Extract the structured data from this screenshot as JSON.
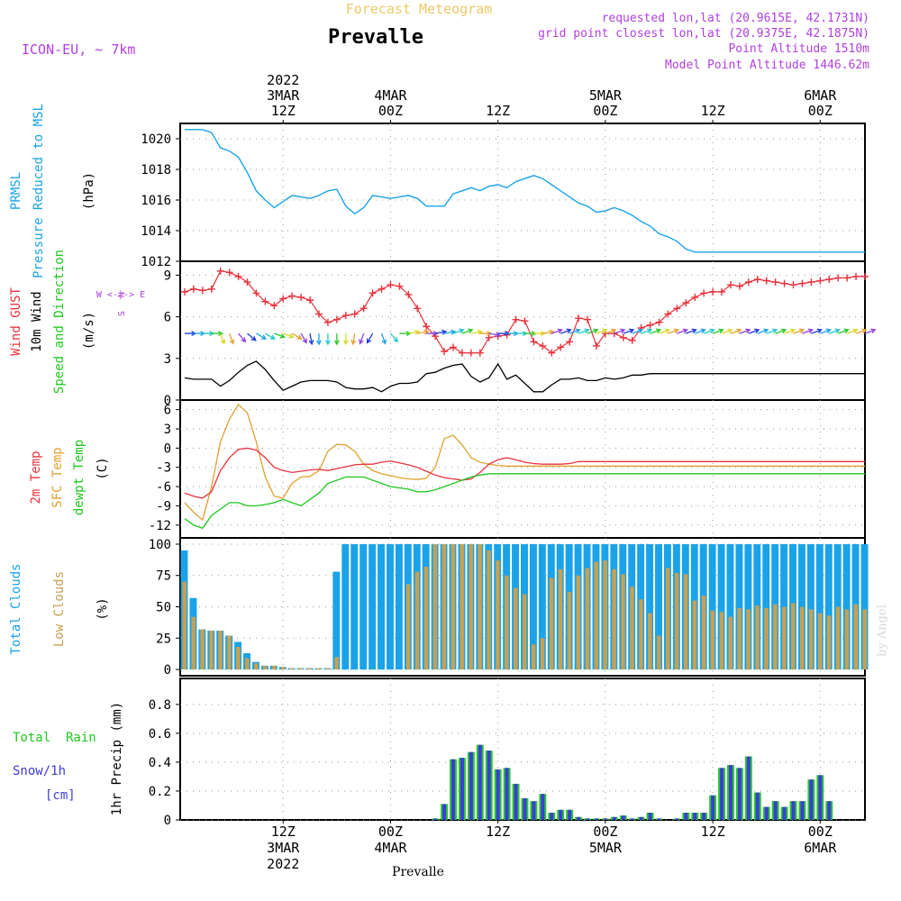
{
  "header": {
    "subtitle": "Forecast Meteogram",
    "location": "Prevalle",
    "model": "ICON-EU, ~ 7km",
    "requested": "requested lon,lat (20.9615E, 42.1731N)",
    "gridpoint": "grid point closest lon,lat (20.9375E, 42.1875N)",
    "altitude": "Point Altitude 1510m",
    "model_altitude": "Model Point Altitude 1446.62m",
    "footer": "Prevalle",
    "credit": "by Angel"
  },
  "time_axis": {
    "top_labels": [
      {
        "hour": 12,
        "lines": [
          "2022",
          "3MAR",
          "12Z"
        ]
      },
      {
        "hour": 24,
        "lines": [
          "4MAR",
          "00Z"
        ]
      },
      {
        "hour": 36,
        "lines": [
          "12Z"
        ]
      },
      {
        "hour": 48,
        "lines": [
          "5MAR",
          "00Z"
        ]
      },
      {
        "hour": 60,
        "lines": [
          "12Z"
        ]
      },
      {
        "hour": 72,
        "lines": [
          "6MAR",
          "00Z"
        ]
      }
    ],
    "bottom_labels": [
      {
        "hour": 12,
        "lines": [
          "12Z",
          "3MAR",
          "2022"
        ]
      },
      {
        "hour": 24,
        "lines": [
          "00Z",
          "4MAR"
        ]
      },
      {
        "hour": 36,
        "lines": [
          "12Z"
        ]
      },
      {
        "hour": 48,
        "lines": [
          "00Z",
          "5MAR"
        ]
      },
      {
        "hour": 60,
        "lines": [
          "12Z"
        ]
      },
      {
        "hour": 72,
        "lines": [
          "00Z",
          "6MAR"
        ]
      }
    ],
    "range_hours": [
      0.5,
      77
    ]
  },
  "colors": {
    "pressure": "#1aa3e8",
    "gust": "#e8323c",
    "wind": "#000000",
    "dewpt": "#1ec81e",
    "sfc": "#e0a030",
    "total_clouds": "#1aa3e8",
    "low_clouds": "#c8a050",
    "rain": "#28c828",
    "snow": "#3c3cdc",
    "purple": "#b040e0",
    "green_text": "#1ec81e"
  },
  "panels": {
    "pressure": {
      "labels": [
        "PRMSL",
        "Pressure Reduced to MSL"
      ],
      "unit": "(hPa)",
      "yticks": [
        1012,
        1014,
        1016,
        1018,
        1020
      ]
    },
    "wind": {
      "labels": [
        "Wind GUST",
        "10m Wind",
        "Speed and Direction"
      ],
      "unit": "(m/s)",
      "yticks": [
        0,
        3,
        6,
        9
      ],
      "compass": [
        "N",
        "W <-|-> E",
        "S"
      ]
    },
    "temp": {
      "labels": [
        "2m Temp",
        "SFC Temp",
        "dewpt Temp"
      ],
      "unit": "(C)",
      "yticks": [
        -12,
        -9,
        -6,
        -3,
        0,
        3,
        6
      ]
    },
    "clouds": {
      "labels": [
        "Total Clouds",
        "Low Clouds"
      ],
      "unit": "(%)",
      "yticks": [
        0,
        25,
        50,
        75,
        100
      ]
    },
    "precip": {
      "labels": [
        "Total  Rain",
        "Snow/1h",
        "[cm]"
      ],
      "ylabel": "1hr Precip (mm)",
      "yticks": [
        0,
        0.2,
        0.4,
        0.6,
        0.8
      ]
    }
  },
  "chart_data": {
    "type": "line",
    "x_unit": "hours from 3MAR 00Z",
    "x": [
      1,
      2,
      3,
      4,
      5,
      6,
      7,
      8,
      9,
      10,
      11,
      12,
      13,
      14,
      15,
      16,
      17,
      18,
      19,
      20,
      21,
      22,
      23,
      24,
      25,
      26,
      27,
      28,
      29,
      30,
      31,
      32,
      33,
      34,
      35,
      36,
      37,
      38,
      39,
      40,
      41,
      42,
      43,
      44,
      45,
      46,
      47,
      48,
      49,
      50,
      51,
      52,
      53,
      54,
      55,
      56,
      57,
      58,
      59,
      60,
      61,
      62,
      63,
      64,
      65,
      66,
      67,
      68,
      69,
      70,
      71,
      72,
      73,
      74,
      75,
      76,
      77
    ],
    "pressure_hpa": [
      1020.6,
      1020.6,
      1020.6,
      1020.4,
      1019.4,
      1019.2,
      1018.8,
      1017.8,
      1016.6,
      1016.0,
      1015.5,
      1015.9,
      1016.3,
      1016.2,
      1016.1,
      1016.3,
      1016.6,
      1016.7,
      1015.6,
      1015.1,
      1015.5,
      1016.3,
      1016.2,
      1016.1,
      1016.2,
      1016.3,
      1016.1,
      1015.6,
      1015.6,
      1015.6,
      1016.4,
      1016.6,
      1016.8,
      1016.6,
      1016.9,
      1017.0,
      1016.8,
      1017.2,
      1017.4,
      1017.6,
      1017.4,
      1017.0,
      1016.6,
      1016.2,
      1015.8,
      1015.6,
      1015.2,
      1015.3,
      1015.5,
      1015.3,
      1015.0,
      1014.6,
      1014.3,
      1013.8,
      1013.6,
      1013.3,
      1012.8,
      1012.6,
      1012.6,
      1012.6,
      1012.6,
      1012.6,
      1012.6,
      1012.6,
      1012.6,
      1012.6,
      1012.6,
      1012.6,
      1012.6,
      1012.6,
      1012.6,
      1012.6,
      1012.6,
      1012.6,
      1012.6,
      1012.6,
      1012.6
    ],
    "gust_ms": [
      7.8,
      8.0,
      7.9,
      8.0,
      9.3,
      9.2,
      8.9,
      8.5,
      7.7,
      7.1,
      6.8,
      7.3,
      7.5,
      7.4,
      7.2,
      6.2,
      5.6,
      5.8,
      6.1,
      6.2,
      6.6,
      7.7,
      8.0,
      8.3,
      8.2,
      7.6,
      6.6,
      5.3,
      4.6,
      3.5,
      3.8,
      3.4,
      3.4,
      3.4,
      4.5,
      4.6,
      4.7,
      5.8,
      5.7,
      4.2,
      3.9,
      3.4,
      3.8,
      4.2,
      5.9,
      5.8,
      3.9,
      4.8,
      4.8,
      4.5,
      4.3,
      5.2,
      5.4,
      5.6,
      6.2,
      6.6,
      7.0,
      7.4,
      7.7,
      7.8,
      7.8,
      8.3,
      8.2,
      8.5,
      8.7,
      8.6,
      8.5,
      8.4,
      8.3,
      8.4,
      8.5,
      8.6,
      8.7,
      8.8,
      8.8,
      8.9,
      8.9
    ],
    "wind_ms": [
      1.6,
      1.5,
      1.5,
      1.5,
      1.0,
      1.4,
      2.0,
      2.5,
      2.8,
      2.2,
      1.4,
      0.7,
      1.0,
      1.3,
      1.4,
      1.4,
      1.4,
      1.3,
      0.9,
      0.8,
      0.8,
      0.9,
      0.6,
      1.0,
      1.2,
      1.2,
      1.3,
      1.9,
      2.0,
      2.3,
      2.5,
      2.6,
      1.7,
      1.3,
      1.6,
      2.6,
      1.5,
      1.8,
      1.2,
      0.6,
      0.6,
      1.1,
      1.5,
      1.5,
      1.6,
      1.4,
      1.4,
      1.6,
      1.5,
      1.6,
      1.8,
      1.8,
      1.9,
      1.9,
      1.9,
      1.9,
      1.9,
      1.9,
      1.9,
      1.9,
      1.9,
      1.9,
      1.9,
      1.9,
      1.9,
      1.9,
      1.9,
      1.9,
      1.9,
      1.9,
      1.9,
      1.9,
      1.9,
      1.9,
      1.9,
      1.9,
      1.9
    ],
    "wind_dir_deg": [
      270,
      270,
      270,
      270,
      340,
      340,
      320,
      310,
      300,
      300,
      290,
      290,
      300,
      330,
      350,
      0,
      0,
      0,
      0,
      10,
      20,
      30,
      340,
      320,
      270,
      260,
      260,
      270,
      260,
      260,
      250,
      250,
      260,
      270,
      280,
      270,
      270,
      270,
      270,
      270,
      260,
      250,
      250,
      250,
      250,
      250,
      250,
      250,
      250,
      250,
      250,
      250,
      250,
      250,
      250,
      250,
      250,
      250,
      250,
      250,
      250,
      250,
      250,
      250,
      250,
      250,
      250,
      250,
      250,
      250,
      250,
      250,
      250,
      250,
      250,
      250,
      250
    ],
    "temp2m_c": [
      -7.0,
      -7.5,
      -7.8,
      -6.8,
      -3.5,
      -1.5,
      -0.2,
      0.0,
      -0.3,
      -1.5,
      -3.0,
      -3.5,
      -3.8,
      -3.6,
      -3.4,
      -3.3,
      -3.5,
      -3.2,
      -2.9,
      -2.6,
      -2.5,
      -2.5,
      -2.2,
      -2.0,
      -2.3,
      -2.6,
      -3.0,
      -3.6,
      -4.2,
      -4.6,
      -4.8,
      -5.0,
      -4.8,
      -3.8,
      -2.5,
      -1.8,
      -1.5,
      -1.8,
      -2.2,
      -2.4,
      -2.5,
      -2.5,
      -2.5,
      -2.4,
      -2.1,
      -2.1,
      -2.1,
      -2.1,
      -2.1,
      -2.1,
      -2.1,
      -2.1,
      -2.1,
      -2.1,
      -2.1,
      -2.1,
      -2.1,
      -2.1,
      -2.1,
      -2.1,
      -2.1,
      -2.1,
      -2.1,
      -2.1,
      -2.1,
      -2.1,
      -2.1,
      -2.1,
      -2.1,
      -2.1,
      -2.1,
      -2.1,
      -2.1,
      -2.1,
      -2.1,
      -2.1,
      -2.1
    ],
    "sfc_c": [
      -8.5,
      -10.0,
      -11.2,
      -6.0,
      1.0,
      4.5,
      6.8,
      5.5,
      1.0,
      -4.5,
      -7.5,
      -7.8,
      -5.5,
      -4.5,
      -4.4,
      -3.5,
      -0.5,
      0.6,
      0.5,
      -0.5,
      -2.5,
      -3.5,
      -4.0,
      -4.3,
      -4.6,
      -4.8,
      -4.9,
      -4.7,
      -3.0,
      1.5,
      2.0,
      0.5,
      -1.5,
      -2.2,
      -2.5,
      -2.7,
      -2.8,
      -2.8,
      -2.8,
      -2.8,
      -2.8,
      -2.8,
      -2.8,
      -2.8,
      -2.8,
      -2.8,
      -2.8,
      -2.8,
      -2.8,
      -2.8,
      -2.8,
      -2.8,
      -2.8,
      -2.8,
      -2.8,
      -2.8,
      -2.8,
      -2.8,
      -2.8,
      -2.8,
      -2.8,
      -2.8,
      -2.8,
      -2.8,
      -2.8,
      -2.8,
      -2.8,
      -2.8,
      -2.8,
      -2.8,
      -2.8,
      -2.8,
      -2.8,
      -2.8,
      -2.8,
      -2.8,
      -2.8
    ],
    "dewpt_c": [
      -11.0,
      -12.0,
      -12.5,
      -10.5,
      -9.5,
      -8.5,
      -8.5,
      -9.0,
      -9.0,
      -8.8,
      -8.5,
      -8.0,
      -8.5,
      -9.0,
      -8.0,
      -7.0,
      -5.5,
      -5.0,
      -4.5,
      -4.5,
      -4.5,
      -5.0,
      -5.5,
      -6.0,
      -6.2,
      -6.4,
      -6.8,
      -6.8,
      -6.5,
      -6.0,
      -5.5,
      -5.0,
      -4.5,
      -4.2,
      -4.0,
      -4.0,
      -4.0,
      -4.0,
      -4.0,
      -4.0,
      -4.0,
      -4.0,
      -4.0,
      -4.0,
      -4.0,
      -4.0,
      -4.0,
      -4.0,
      -4.0,
      -4.0,
      -4.0,
      -4.0,
      -4.0,
      -4.0,
      -4.0,
      -4.0,
      -4.0,
      -4.0,
      -4.0,
      -4.0,
      -4.0,
      -4.0,
      -4.0,
      -4.0,
      -4.0,
      -4.0,
      -4.0,
      -4.0,
      -4.0,
      -4.0,
      -4.0,
      -4.0,
      -4.0,
      -4.0,
      -4.0,
      -4.0,
      -4.0
    ],
    "total_clouds_pct": [
      95,
      57,
      32,
      31,
      31,
      27,
      22,
      13,
      6,
      3,
      3,
      2,
      1,
      1,
      1,
      1,
      1,
      78,
      100,
      100,
      100,
      100,
      100,
      100,
      100,
      100,
      100,
      100,
      100,
      100,
      100,
      100,
      100,
      100,
      100,
      100,
      100,
      100,
      100,
      100,
      100,
      100,
      100,
      100,
      100,
      100,
      100,
      100,
      100,
      100,
      100,
      100,
      100,
      100,
      100,
      100,
      100,
      100,
      100,
      100,
      100,
      100,
      100,
      100,
      100,
      100,
      100,
      100,
      100,
      100,
      100,
      100,
      100,
      100,
      100,
      100,
      100
    ],
    "low_clouds_pct": [
      70,
      42,
      32,
      31,
      31,
      27,
      18,
      9,
      5,
      3,
      3,
      2,
      1,
      1,
      1,
      1,
      1,
      10,
      0,
      0,
      0,
      0,
      0,
      0,
      0,
      68,
      78,
      82,
      100,
      100,
      100,
      100,
      100,
      100,
      95,
      87,
      75,
      65,
      60,
      20,
      25,
      73,
      80,
      62,
      75,
      81,
      86,
      87,
      80,
      76,
      66,
      56,
      45,
      27,
      81,
      77,
      76,
      55,
      59,
      47,
      46,
      42,
      49,
      48,
      51,
      49,
      52,
      50,
      53,
      50,
      48,
      45,
      43,
      50,
      48,
      52,
      48
    ],
    "rain_mm": [
      0,
      0,
      0,
      0,
      0,
      0,
      0,
      0,
      0,
      0,
      0,
      0,
      0,
      0,
      0,
      0,
      0,
      0,
      0,
      0,
      0,
      0,
      0,
      0,
      0,
      0,
      0,
      0,
      0.01,
      0.11,
      0.42,
      0.43,
      0.47,
      0.52,
      0.48,
      0.35,
      0.36,
      0.25,
      0.15,
      0.13,
      0.18,
      0.05,
      0.07,
      0.07,
      0.02,
      0.01,
      0.01,
      0.01,
      0.02,
      0.03,
      0.01,
      0.02,
      0.05,
      0.01,
      0,
      0.01,
      0.05,
      0.05,
      0.05,
      0.17,
      0.36,
      0.38,
      0.36,
      0.44,
      0.19,
      0.09,
      0.13,
      0.09,
      0.13,
      0.13,
      0.28,
      0.31,
      0.13,
      0,
      0,
      0,
      0
    ],
    "snow_cm": [
      0,
      0,
      0,
      0,
      0,
      0,
      0,
      0,
      0,
      0,
      0,
      0,
      0,
      0,
      0,
      0,
      0,
      0,
      0,
      0,
      0,
      0,
      0,
      0,
      0,
      0,
      0,
      0,
      0.01,
      0.11,
      0.42,
      0.43,
      0.47,
      0.52,
      0.48,
      0.35,
      0.36,
      0.25,
      0.15,
      0.13,
      0.18,
      0.05,
      0.07,
      0.07,
      0.02,
      0.01,
      0.01,
      0.01,
      0.02,
      0.03,
      0.01,
      0.02,
      0.05,
      0.01,
      0,
      0.01,
      0.05,
      0.05,
      0.05,
      0.17,
      0.36,
      0.38,
      0.36,
      0.44,
      0.19,
      0.09,
      0.13,
      0.09,
      0.13,
      0.13,
      0.28,
      0.31,
      0.13,
      0,
      0,
      0,
      0
    ]
  }
}
